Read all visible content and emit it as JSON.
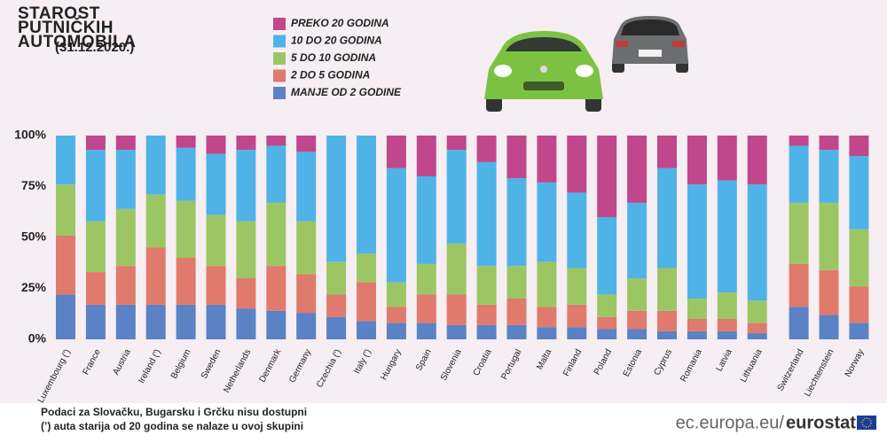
{
  "chart_data": {
    "type": "stacked_bar",
    "title": "STAROST PUTNIČKIH AUTOMOBILA",
    "subtitle": "(31.12.2020.)",
    "categories": [
      "Luxembourg (')",
      "France",
      "Austria",
      "Ireland (')",
      "Belgium",
      "Sweden",
      "Netherlands",
      "Denmark",
      "Germany",
      "Czechia (')",
      "Italy (')",
      "Hungary",
      "Spain",
      "Slovenia",
      "Croatia",
      "Portugal",
      "Malta",
      "Finland",
      "Poland",
      "Estonia",
      "Cyprus",
      "Romania",
      "Latvia",
      "Lithuania",
      "Switzerland",
      "Liechtenstein",
      "Norway"
    ],
    "series": [
      {
        "name": "PREKO 20 GODINA",
        "color": "#c0478b",
        "values": [
          0,
          7,
          7,
          0,
          6,
          9,
          7,
          5,
          8,
          0,
          0,
          16,
          20,
          7,
          13,
          21,
          23,
          28,
          40,
          33,
          16,
          24,
          22,
          24,
          5,
          7,
          10
        ]
      },
      {
        "name": "10 DO 20 GODINA",
        "color": "#4fb3e8",
        "values": [
          24,
          35,
          29,
          29,
          26,
          30,
          35,
          28,
          34,
          62,
          58,
          56,
          43,
          46,
          51,
          43,
          39,
          37,
          38,
          37,
          49,
          56,
          55,
          57,
          28,
          26,
          36
        ]
      },
      {
        "name": "5 DO 10 GODINA",
        "color": "#9cc664",
        "values": [
          25,
          25,
          28,
          26,
          28,
          25,
          28,
          31,
          26,
          16,
          14,
          12,
          15,
          25,
          19,
          16,
          22,
          18,
          11,
          16,
          21,
          10,
          13,
          11,
          30,
          33,
          28
        ]
      },
      {
        "name": "2 DO 5 GODINA",
        "color": "#e07a6c",
        "values": [
          29,
          16,
          19,
          28,
          23,
          19,
          15,
          22,
          19,
          11,
          19,
          8,
          14,
          15,
          10,
          13,
          10,
          11,
          6,
          9,
          10,
          6,
          6,
          5,
          21,
          22,
          18
        ]
      },
      {
        "name": "MANJE OD 2 GODINE",
        "color": "#5b82c4",
        "values": [
          22,
          17,
          17,
          17,
          17,
          17,
          15,
          14,
          13,
          11,
          9,
          8,
          8,
          7,
          7,
          7,
          6,
          6,
          5,
          5,
          4,
          4,
          4,
          3,
          16,
          12,
          8
        ]
      }
    ],
    "ylim": [
      0,
      100
    ],
    "yticks": [
      {
        "value": 0,
        "label": "0%"
      },
      {
        "value": 25,
        "label": "25%"
      },
      {
        "value": 50,
        "label": "50%"
      },
      {
        "value": 75,
        "label": "75%"
      },
      {
        "value": 100,
        "label": "100%"
      }
    ],
    "grid": false,
    "notes": [
      "Podaci za Slovačku, Bugarsku i Grčku nisu dostupni",
      "(’) auta starija od 20 godina se nalaze u ovoj skupini"
    ],
    "source_url": "ec.europa.eu/",
    "source_name": "eurostat"
  }
}
